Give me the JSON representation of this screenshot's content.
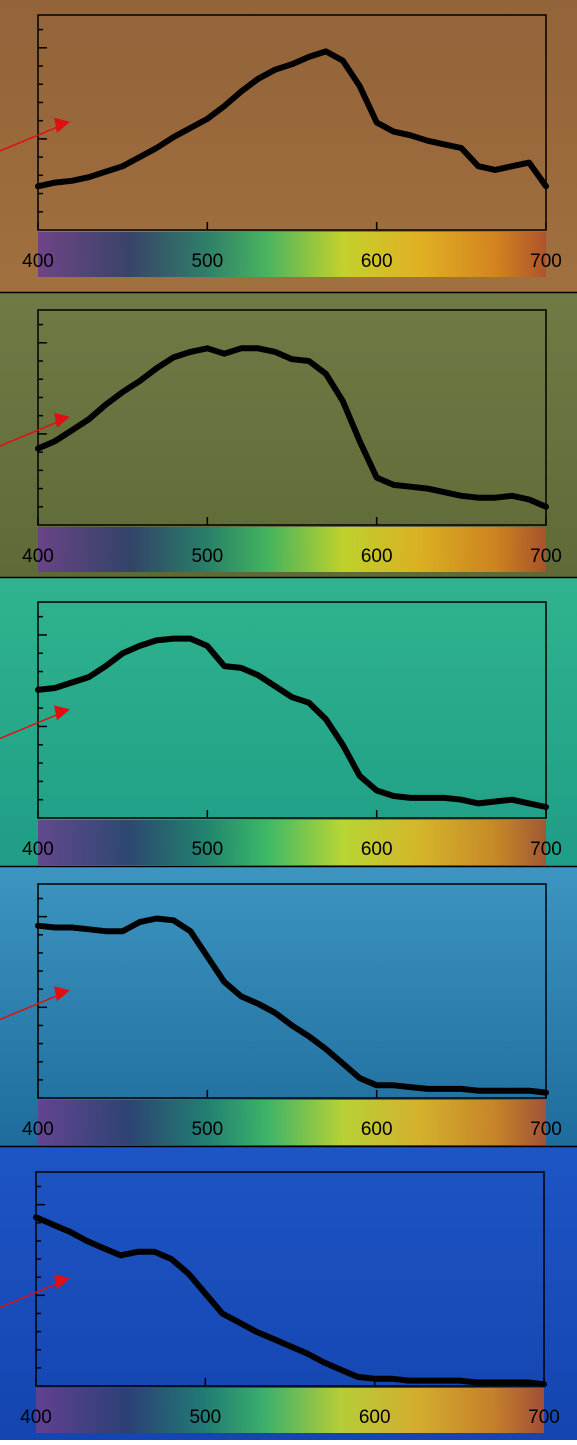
{
  "chart_data": [
    {
      "type": "line",
      "color": "#000000",
      "xlim": [
        400,
        700
      ],
      "xticks": [
        400,
        500,
        600,
        700
      ],
      "ylim": [
        0,
        1.18
      ],
      "yticks": [
        0.1,
        0.2,
        0.3,
        0.4,
        0.5,
        0.6,
        0.7,
        0.8,
        0.9,
        1.0,
        1.1
      ],
      "x": [
        400,
        410,
        420,
        430,
        440,
        450,
        460,
        470,
        480,
        490,
        500,
        510,
        520,
        530,
        540,
        550,
        560,
        570,
        580,
        590,
        600,
        610,
        620,
        630,
        640,
        650,
        660,
        670,
        680,
        690,
        700
      ],
      "values": [
        0.24,
        0.26,
        0.27,
        0.29,
        0.32,
        0.35,
        0.4,
        0.45,
        0.51,
        0.56,
        0.61,
        0.68,
        0.76,
        0.83,
        0.88,
        0.91,
        0.95,
        0.98,
        0.93,
        0.79,
        0.59,
        0.54,
        0.52,
        0.49,
        0.47,
        0.45,
        0.35,
        0.33,
        0.35,
        0.37,
        0.24
      ]
    },
    {
      "type": "line",
      "color": "#000000",
      "xlim": [
        400,
        700
      ],
      "xticks": [
        400,
        500,
        600,
        700
      ],
      "ylim": [
        0,
        1.18
      ],
      "yticks": [
        0.1,
        0.2,
        0.3,
        0.4,
        0.5,
        0.6,
        0.7,
        0.8,
        0.9,
        1.0,
        1.1
      ],
      "x": [
        400,
        410,
        420,
        430,
        440,
        450,
        460,
        470,
        480,
        490,
        500,
        510,
        520,
        530,
        540,
        550,
        560,
        570,
        580,
        590,
        600,
        610,
        620,
        630,
        640,
        650,
        660,
        670,
        680,
        690,
        700
      ],
      "values": [
        0.42,
        0.46,
        0.52,
        0.58,
        0.66,
        0.73,
        0.79,
        0.86,
        0.92,
        0.95,
        0.97,
        0.94,
        0.97,
        0.97,
        0.95,
        0.91,
        0.9,
        0.83,
        0.68,
        0.46,
        0.26,
        0.22,
        0.21,
        0.2,
        0.18,
        0.16,
        0.15,
        0.15,
        0.16,
        0.14,
        0.1
      ]
    },
    {
      "type": "line",
      "color": "#000000",
      "xlim": [
        400,
        700
      ],
      "xticks": [
        400,
        500,
        600,
        700
      ],
      "ylim": [
        0,
        1.18
      ],
      "yticks": [
        0.1,
        0.2,
        0.3,
        0.4,
        0.5,
        0.6,
        0.7,
        0.8,
        0.9,
        1.0,
        1.1
      ],
      "x": [
        400,
        410,
        420,
        430,
        440,
        450,
        460,
        470,
        480,
        490,
        500,
        510,
        520,
        530,
        540,
        550,
        560,
        570,
        580,
        590,
        600,
        610,
        620,
        630,
        640,
        650,
        660,
        670,
        680,
        690,
        700
      ],
      "values": [
        0.7,
        0.71,
        0.74,
        0.77,
        0.83,
        0.9,
        0.94,
        0.97,
        0.98,
        0.98,
        0.94,
        0.83,
        0.82,
        0.78,
        0.72,
        0.66,
        0.63,
        0.54,
        0.4,
        0.23,
        0.15,
        0.12,
        0.11,
        0.11,
        0.11,
        0.1,
        0.08,
        0.09,
        0.1,
        0.08,
        0.06
      ]
    },
    {
      "type": "line",
      "color": "#000000",
      "xlim": [
        400,
        700
      ],
      "xticks": [
        400,
        500,
        600,
        700
      ],
      "ylim": [
        0,
        1.18
      ],
      "yticks": [
        0.1,
        0.2,
        0.3,
        0.4,
        0.5,
        0.6,
        0.7,
        0.8,
        0.9,
        1.0,
        1.1
      ],
      "x": [
        400,
        410,
        420,
        430,
        440,
        450,
        460,
        470,
        480,
        490,
        500,
        510,
        520,
        530,
        540,
        550,
        560,
        570,
        580,
        590,
        600,
        610,
        620,
        630,
        640,
        650,
        660,
        670,
        680,
        690,
        700
      ],
      "values": [
        0.95,
        0.94,
        0.94,
        0.93,
        0.92,
        0.92,
        0.97,
        0.99,
        0.98,
        0.92,
        0.78,
        0.64,
        0.56,
        0.52,
        0.47,
        0.4,
        0.34,
        0.27,
        0.19,
        0.11,
        0.07,
        0.07,
        0.06,
        0.05,
        0.05,
        0.05,
        0.04,
        0.04,
        0.04,
        0.04,
        0.03
      ]
    },
    {
      "type": "line",
      "color": "#000000",
      "xlim": [
        400,
        700
      ],
      "xticks": [
        400,
        500,
        600,
        700
      ],
      "ylim": [
        0,
        1.18
      ],
      "yticks": [
        0.1,
        0.2,
        0.3,
        0.4,
        0.5,
        0.6,
        0.7,
        0.8,
        0.9,
        1.0,
        1.1
      ],
      "x": [
        400,
        410,
        420,
        430,
        440,
        450,
        460,
        470,
        480,
        490,
        500,
        510,
        520,
        530,
        540,
        550,
        560,
        570,
        580,
        590,
        600,
        610,
        620,
        630,
        640,
        650,
        660,
        670,
        680,
        690,
        700
      ],
      "values": [
        0.93,
        0.89,
        0.85,
        0.8,
        0.76,
        0.72,
        0.74,
        0.74,
        0.7,
        0.62,
        0.51,
        0.4,
        0.35,
        0.3,
        0.26,
        0.22,
        0.18,
        0.13,
        0.09,
        0.05,
        0.04,
        0.04,
        0.03,
        0.03,
        0.03,
        0.03,
        0.02,
        0.02,
        0.02,
        0.02,
        0.01
      ]
    }
  ]
}
